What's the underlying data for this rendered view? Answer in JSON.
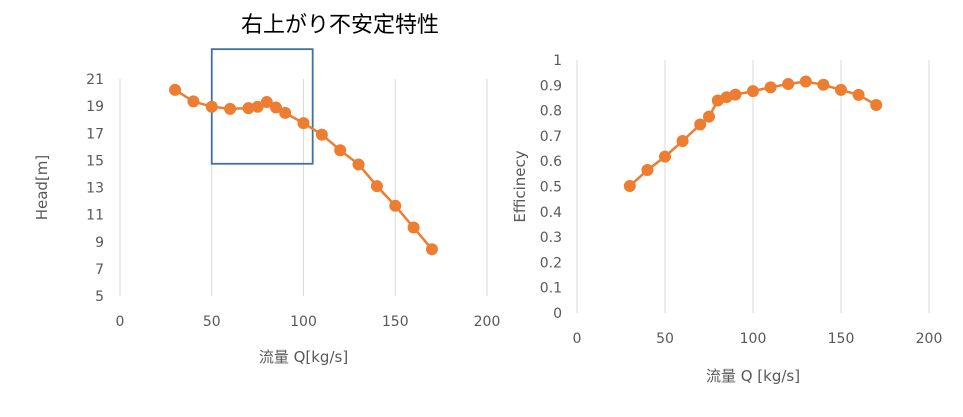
{
  "chart_data": [
    {
      "type": "scatter",
      "xlabel": "流量 Q[kg/s]",
      "ylabel": "Head[m]",
      "xlim": [
        0,
        200
      ],
      "ylim": [
        5,
        21
      ],
      "xticks": [
        "0",
        "50",
        "100",
        "150",
        "200"
      ],
      "yticks": [
        "5",
        "7",
        "9",
        "11",
        "13",
        "15",
        "17",
        "19",
        "21"
      ],
      "grid": "vertical",
      "series_color": "#ed7d31",
      "series": [
        {
          "x": [
            30,
            40,
            50,
            60,
            70,
            75,
            80,
            85,
            90,
            100,
            110,
            120,
            130,
            140,
            150,
            160,
            170
          ],
          "y": [
            20.2,
            19.35,
            18.95,
            18.8,
            18.85,
            18.95,
            19.3,
            18.9,
            18.5,
            17.75,
            16.9,
            15.75,
            14.7,
            13.1,
            11.65,
            10.05,
            8.45
          ]
        }
      ],
      "annotation": {
        "text": "右上がり不安定特性",
        "box": {
          "x0": 50,
          "x1": 105,
          "y0": 14.75,
          "y1": 23.2
        },
        "color": "#41719c"
      }
    },
    {
      "type": "scatter",
      "xlabel": "流量 Q [kg/s]",
      "ylabel": "Efficinecy",
      "xlim": [
        0,
        200
      ],
      "ylim": [
        0,
        1
      ],
      "xticks": [
        "0",
        "50",
        "100",
        "150",
        "200"
      ],
      "yticks": [
        "0",
        "0.1",
        "0.2",
        "0.3",
        "0.4",
        "0.5",
        "0.6",
        "0.7",
        "0.8",
        "0.9",
        "1"
      ],
      "grid": "vertical",
      "series_color": "#ed7d31",
      "series": [
        {
          "x": [
            30,
            40,
            50,
            60,
            70,
            75,
            80,
            85,
            90,
            100,
            110,
            120,
            130,
            140,
            150,
            160,
            170
          ],
          "y": [
            0.502,
            0.565,
            0.618,
            0.68,
            0.745,
            0.776,
            0.84,
            0.853,
            0.863,
            0.877,
            0.892,
            0.905,
            0.915,
            0.902,
            0.882,
            0.862,
            0.822
          ]
        }
      ]
    }
  ]
}
